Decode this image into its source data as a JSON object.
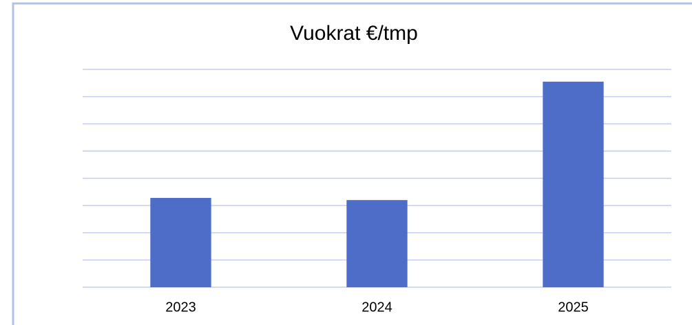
{
  "chart_data": {
    "type": "bar",
    "title": "Vuokrat €/tmp",
    "categories": [
      "2023",
      "2024",
      "2025"
    ],
    "values": [
      3.28,
      3.2,
      7.55
    ],
    "color": "#4e6dc8",
    "ylim": [
      0,
      8
    ],
    "yticks": [
      0,
      1,
      2,
      3,
      4,
      5,
      6,
      7,
      8
    ],
    "grid": true
  }
}
